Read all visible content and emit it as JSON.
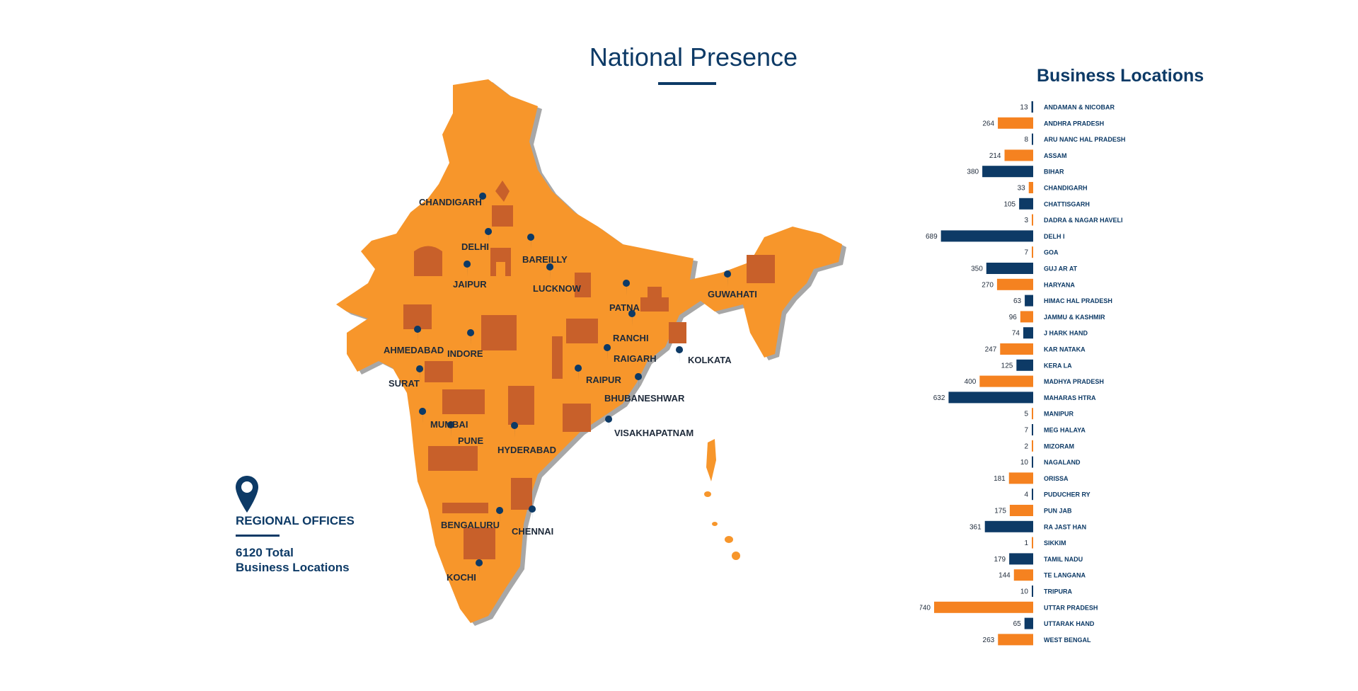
{
  "page": {
    "title": "National Presence",
    "legend": {
      "title": "REGIONAL OFFICES",
      "total_line1": "6120 Total",
      "total_line2": "Business Locations"
    }
  },
  "colors": {
    "navy": "#0d3a66",
    "orange": "#f58220",
    "map": "#f7962b",
    "landmark": "#c8602a"
  },
  "cities": [
    {
      "name": "CHANDIGARH"
    },
    {
      "name": "DELHI"
    },
    {
      "name": "BAREILLY"
    },
    {
      "name": "JAIPUR"
    },
    {
      "name": "LUCKNOW"
    },
    {
      "name": "GUWAHATI"
    },
    {
      "name": "PATNA"
    },
    {
      "name": "RANCHI"
    },
    {
      "name": "AHMEDABAD"
    },
    {
      "name": "INDORE"
    },
    {
      "name": "RAIGARH"
    },
    {
      "name": "KOLKATA"
    },
    {
      "name": "SURAT"
    },
    {
      "name": "RAIPUR"
    },
    {
      "name": "BHUBANESHWAR"
    },
    {
      "name": "MUMBAI"
    },
    {
      "name": "PUNE"
    },
    {
      "name": "HYDERABAD"
    },
    {
      "name": "VISAKHAPATNAM"
    },
    {
      "name": "BENGALURU"
    },
    {
      "name": "CHENNAI"
    },
    {
      "name": "KOCHI"
    }
  ],
  "chart_data": {
    "type": "bar",
    "orientation": "horizontal",
    "title": "Business Locations",
    "categories": [
      "ANDAMAN & NICOBAR",
      "ANDHRA PRADESH",
      "ARU NANC HAL PRADESH",
      "ASSAM",
      "BIHAR",
      "CHANDIGARH",
      "CHATTISGARH",
      "DADRA  & NAGAR HAVELI",
      "DELH I",
      "GOA",
      "GUJ AR AT",
      "HARYANA",
      "HIMAC HAL PRADESH",
      "JAMMU & KASHMIR",
      "J HARK HAND",
      "KAR NATAKA",
      "KERA  LA",
      "MADHYA PRADESH",
      "MAHARAS HTRA",
      "MANIPUR",
      "MEG HALAYA",
      "MIZORAM",
      "NAGALAND",
      "ORISSA",
      "PUDUCHER  RY",
      "PUN JAB",
      "RA JAST HAN",
      "SIKKIM",
      "TAMIL NADU",
      "TE LANGANA",
      "TRIPURA",
      "UTTAR  PRADESH",
      "UTTARAK HAND",
      "WEST BENGAL"
    ],
    "values": [
      13,
      264,
      8,
      214,
      380,
      33,
      105,
      3,
      689,
      7,
      350,
      270,
      63,
      96,
      74,
      247,
      125,
      400,
      632,
      5,
      7,
      2,
      10,
      181,
      4,
      175,
      361,
      1,
      179,
      144,
      10,
      740,
      65,
      263
    ],
    "bar_colors": [
      "navy",
      "orange"
    ],
    "value_labels": true
  }
}
